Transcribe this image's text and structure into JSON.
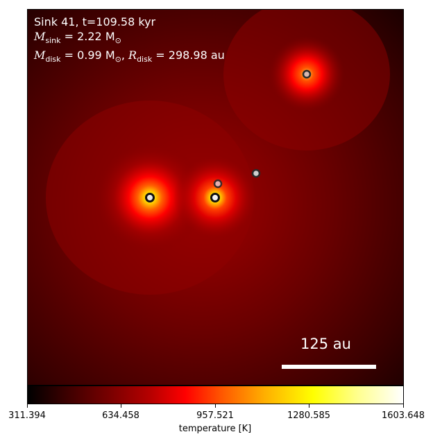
{
  "info": {
    "line1": "Sink 41, t=109.58 kyr",
    "line2_var": "M",
    "line2_sub": "sink",
    "line2_rest": " = 2.22 M",
    "line2_sun": "⊙",
    "line3_var": "M",
    "line3_sub": "disk",
    "line3_mid": " = 0.99 M",
    "line3_sun": "⊙",
    "line3_sep": ", ",
    "line3_var2": "R",
    "line3_sub2": "disk",
    "line3_rest": " = 298.98 au"
  },
  "scale": {
    "label": "125 au"
  },
  "colorbar": {
    "colormap": "hot",
    "ticks": [
      "311.394",
      "634.458",
      "957.521",
      "1280.585",
      "1603.648"
    ],
    "label": "temperature [K]"
  },
  "sinks": [
    {
      "id": "sink-a",
      "ring": "#111111",
      "fill": "#e8e8e8"
    },
    {
      "id": "sink-b",
      "ring": "#111111",
      "fill": "#f4f4f4"
    },
    {
      "id": "sink-c",
      "ring": "#3a2a2a",
      "fill": "#e6b0b0"
    },
    {
      "id": "sink-d",
      "ring": "#2a2a2a",
      "fill": "#cfcfcf"
    },
    {
      "id": "sink-e",
      "ring": "#2a2a2a",
      "fill": "#d8b8b0"
    }
  ]
}
